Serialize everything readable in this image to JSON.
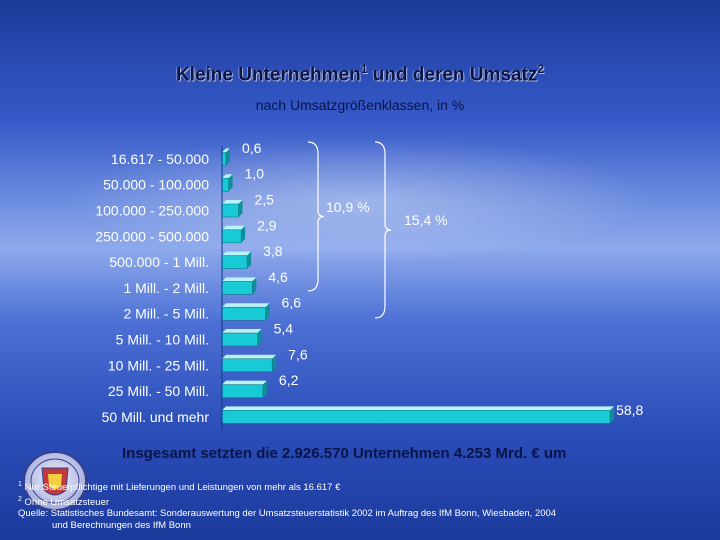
{
  "title": "Kleine Unternehmen",
  "title_sup1": "1",
  "title_mid": " und deren Umsatz",
  "title_sup2": "2",
  "subtitle": "nach Umsatzgrößenklassen, in %",
  "chart_data": {
    "type": "bar",
    "orientation": "horizontal",
    "categories": [
      "16.617 - 50.000",
      "50.000 - 100.000",
      "100.000 - 250.000",
      "250.000 - 500.000",
      "500.000 - 1 Mill.",
      "1 Mill. - 2 Mill.",
      "2 Mill. - 5 Mill.",
      "5 Mill. - 10 Mill.",
      "10 Mill. - 25 Mill.",
      "25 Mill. - 50 Mill.",
      "50 Mill. und mehr"
    ],
    "values": [
      0.6,
      1.0,
      2.5,
      2.9,
      3.8,
      4.6,
      6.6,
      5.4,
      7.6,
      6.2,
      58.8
    ],
    "value_labels": [
      "0,6",
      "1,0",
      "2,5",
      "2,9",
      "3,8",
      "4,6",
      "6,6",
      "5,4",
      "7,6",
      "6,2",
      "58,8"
    ],
    "xlim": [
      0,
      60
    ],
    "bar_color": "#18c9d6",
    "bracket_labels": [
      "10,9 %",
      "15,4 %"
    ]
  },
  "total_text": "Insgesamt setzten die 2.926.570 Unternehmen 4.253 Mrd. € um",
  "footnotes": [
    {
      "sup": "1",
      "text": " Nur Steuerpflichtige mit Lieferungen und Leistungen von mehr als 16.617 €"
    },
    {
      "sup": "2",
      "text": " Ohne Umsatzsteuer"
    },
    {
      "sup": "",
      "text": "Quelle: Statistisches Bundesamt: Sonderauswertung der Umsatzsteuerstatistik 2002 im Auftrag des IfM Bonn, Wiesbaden, 2004"
    },
    {
      "sup": "",
      "text": "          und Berechnungen des IfM Bonn"
    }
  ]
}
